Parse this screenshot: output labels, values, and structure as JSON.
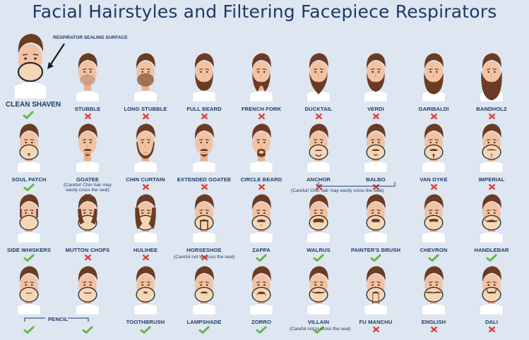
{
  "title": "Facial Hairstyles and Filtering Facepiece Respirators",
  "annotation": "RESPIRATOR SEALING SURFACE",
  "clean_shaven": {
    "label": "CLEAN SHAVEN",
    "ok": true
  },
  "colors": {
    "ok": "#6ab54a",
    "bad": "#d6403b",
    "skin": "#f2c2a2",
    "hair": "#6b3b24",
    "shirt": "#ffffff",
    "mask": "#f5d7b8"
  },
  "rows": [
    [
      {
        "label": "STUBBLE",
        "ok": false,
        "style": "stubble"
      },
      {
        "label": "LONG STUBBLE",
        "ok": false,
        "style": "longstubble"
      },
      {
        "label": "FULL BEARD",
        "ok": false,
        "style": "fullbeard"
      },
      {
        "label": "FRENCH FORK",
        "ok": false,
        "style": "frenchfork"
      },
      {
        "label": "DUCKTAIL",
        "ok": false,
        "style": "ducktail"
      },
      {
        "label": "VERDI",
        "ok": false,
        "style": "verdi"
      },
      {
        "label": "GARIBALDI",
        "ok": false,
        "style": "garibaldi"
      },
      {
        "label": "BANDHOLZ",
        "ok": false,
        "style": "bandholz"
      }
    ],
    [
      {
        "label": "SOUL PATCH",
        "ok": true,
        "style": "soulpatch"
      },
      {
        "label": "GOATEE",
        "ok": false,
        "style": "goatee",
        "note": "(Careful! Chin hair may\neasily cross the seal)"
      },
      {
        "label": "CHIN CURTAIN",
        "ok": false,
        "style": "chincurtain"
      },
      {
        "label": "EXTENDED GOATEE",
        "ok": false,
        "style": "extgoatee"
      },
      {
        "label": "CIRCLE BEARD",
        "ok": false,
        "style": "circle"
      },
      {
        "label": "ANCHOR",
        "ok": false,
        "style": "anchor"
      },
      {
        "label": "BALBO",
        "ok": false,
        "style": "balbo"
      },
      {
        "label": "VAN DYKE",
        "ok": false,
        "style": "vandyke"
      },
      {
        "label": "IMPERIAL",
        "ok": false,
        "style": "imperial"
      }
    ],
    [
      {
        "label": "SIDE WHISKERS",
        "ok": true,
        "style": "sidewhiskers"
      },
      {
        "label": "MUTTON CHOPS",
        "ok": false,
        "style": "mutton"
      },
      {
        "label": "HULIHEE",
        "ok": false,
        "style": "hulihee"
      },
      {
        "label": "HORSESHOE",
        "ok": false,
        "style": "horseshoe"
      },
      {
        "label": "ZAPPA",
        "ok": true,
        "style": "zappa"
      },
      {
        "label": "WALRUS",
        "ok": true,
        "style": "walrus"
      },
      {
        "label": "PAINTER'S BRUSH",
        "ok": true,
        "style": "painters"
      },
      {
        "label": "CHEVRON",
        "ok": true,
        "style": "chevron"
      },
      {
        "label": "HANDLEBAR",
        "ok": true,
        "style": "handlebar"
      }
    ],
    [
      {
        "label": "",
        "ok": true,
        "style": "pencil1"
      },
      {
        "label": "",
        "ok": true,
        "style": "pencil2"
      },
      {
        "label": "TOOTHBRUSH",
        "ok": true,
        "style": "toothbrush"
      },
      {
        "label": "LAMPSHADE",
        "ok": true,
        "style": "lampshade"
      },
      {
        "label": "ZORRO",
        "ok": true,
        "style": "zorro"
      },
      {
        "label": "VILLAIN",
        "ok": true,
        "style": "villain"
      },
      {
        "label": "FU MANCHU",
        "ok": false,
        "style": "fumanchu"
      },
      {
        "label": "ENGLISH",
        "ok": false,
        "style": "english"
      },
      {
        "label": "DALI",
        "ok": false,
        "style": "dali"
      }
    ]
  ],
  "notes": {
    "anchor_balbo": "(Careful! Chin hair may easily cross the seal)",
    "horseshoe": "(Careful not to cross the seal)",
    "villain": "(Careful not to cross the seal)",
    "pencil": "PENCIL"
  }
}
